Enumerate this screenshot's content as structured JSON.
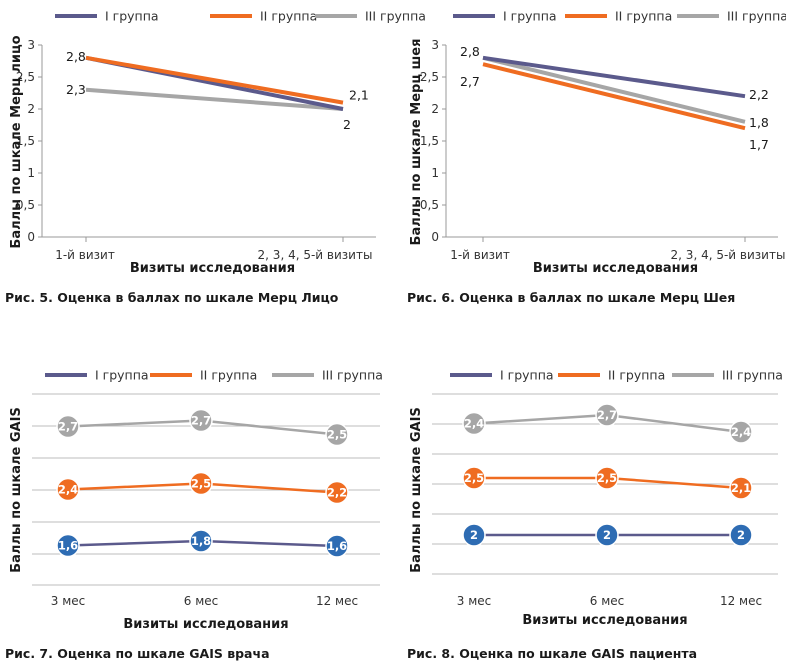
{
  "colors": {
    "I": "#5b5a8c",
    "II": "#ef6c21",
    "III": "#a6a6a6",
    "fill_I": "#2e6cb3",
    "fill_II": "#ef6c21",
    "fill_III": "#a6a6a6"
  },
  "chart_data": [
    {
      "type": "line",
      "caption": "Рис. 5. Оценка в баллах по шкале Мерц Лицо",
      "xlabel": "Визиты исследования",
      "ylabel": "Баллы по шкале Мерц лицо",
      "categories": [
        "1-й визит",
        "2, 3, 4, 5-й визиты"
      ],
      "yticks": [
        "0",
        "0,5",
        "1",
        "1,5",
        "2",
        "2,5",
        "3"
      ],
      "ylim": [
        0,
        3
      ],
      "series": [
        {
          "name": "I группа",
          "values": [
            2.8,
            2.0
          ],
          "labels": [
            "",
            "2"
          ]
        },
        {
          "name": "II группа",
          "values": [
            2.8,
            2.1
          ],
          "labels": [
            "2,8",
            "2,1"
          ]
        },
        {
          "name": "III группа",
          "values": [
            2.3,
            2.0
          ],
          "labels": [
            "2,3",
            ""
          ]
        }
      ]
    },
    {
      "type": "line",
      "caption": "Рис. 6. Оценка в баллах по шкале Мерц Шея",
      "xlabel": "Визиты исследования",
      "ylabel": "Баллы по шкале Мерц шея",
      "categories": [
        "1-й визит",
        "2, 3, 4, 5-й визиты"
      ],
      "yticks": [
        "0",
        "0,5",
        "1",
        "1,5",
        "2",
        "2,5",
        "3"
      ],
      "ylim": [
        0,
        3
      ],
      "series": [
        {
          "name": "I группа",
          "values": [
            2.8,
            2.2
          ],
          "labels": [
            "2,8",
            "2,2"
          ]
        },
        {
          "name": "II группа",
          "values": [
            2.7,
            1.7
          ],
          "labels": [
            "2,7",
            "1,7"
          ]
        },
        {
          "name": "III группа",
          "values": [
            2.8,
            1.8
          ],
          "labels": [
            "",
            "1,8"
          ]
        }
      ]
    },
    {
      "type": "line",
      "caption": "Рис. 7. Оценка по шкале GAIS врача",
      "xlabel": "Визиты исследования",
      "ylabel": "Баллы по шкале GAIS",
      "categories": [
        "3 мес",
        "6 мес",
        "12 мес"
      ],
      "series": [
        {
          "name": "I группа",
          "values": [
            1.6,
            1.8,
            1.6
          ],
          "labels": [
            "1,6",
            "1,8",
            "1,6"
          ]
        },
        {
          "name": "II группа",
          "values": [
            2.4,
            2.5,
            2.2
          ],
          "labels": [
            "2,4",
            "2,5",
            "2,2"
          ]
        },
        {
          "name": "III группа",
          "values": [
            2.7,
            2.7,
            2.5
          ],
          "labels": [
            "2,7",
            "2,7",
            "2,5"
          ]
        }
      ]
    },
    {
      "type": "line",
      "caption": "Рис. 8. Оценка по шкале GAIS пациента",
      "xlabel": "Визиты исследования",
      "ylabel": "Баллы по шкале GAIS",
      "categories": [
        "3 мес",
        "6 мес",
        "12 мес"
      ],
      "series": [
        {
          "name": "I группа",
          "values": [
            2,
            2,
            2
          ],
          "labels": [
            "2",
            "2",
            "2"
          ]
        },
        {
          "name": "II группа",
          "values": [
            2.5,
            2.5,
            2.1
          ],
          "labels": [
            "2,5",
            "2,5",
            "2,1"
          ]
        },
        {
          "name": "III группа",
          "values": [
            2.4,
            2.7,
            2.4
          ],
          "labels": [
            "2,4",
            "2,7",
            "2,4"
          ]
        }
      ]
    }
  ]
}
